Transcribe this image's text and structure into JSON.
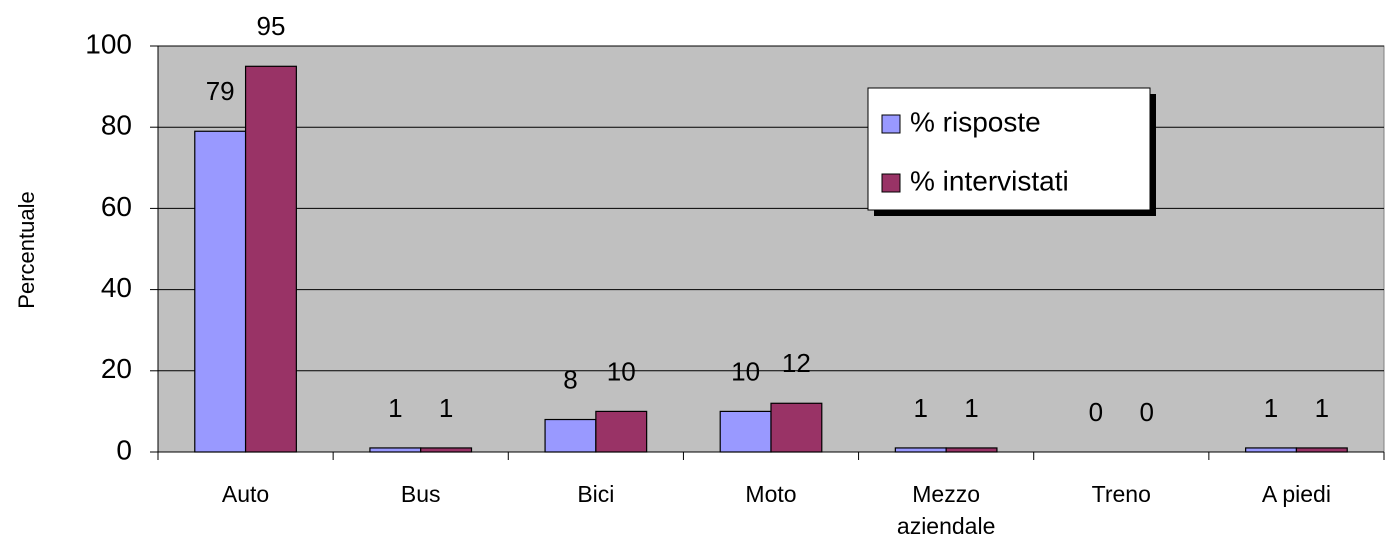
{
  "chart_data": {
    "type": "bar",
    "y_label": "Percentuale",
    "categories": [
      "Auto",
      "Bus",
      "Bici",
      "Moto",
      "Mezzo aziendale",
      "Treno",
      "A piedi"
    ],
    "series": [
      {
        "name": "% risposte",
        "color": "#9999ff",
        "values": [
          79,
          1,
          8,
          10,
          1,
          0,
          1
        ]
      },
      {
        "name": "% intervistati",
        "color": "#993366",
        "values": [
          95,
          1,
          10,
          12,
          1,
          0,
          1
        ]
      }
    ],
    "ylim": [
      0,
      100
    ],
    "yticks": [
      0,
      20,
      40,
      60,
      80,
      100
    ],
    "grid": true,
    "legend": "upper right",
    "plot_background": "#c0c0c0"
  }
}
